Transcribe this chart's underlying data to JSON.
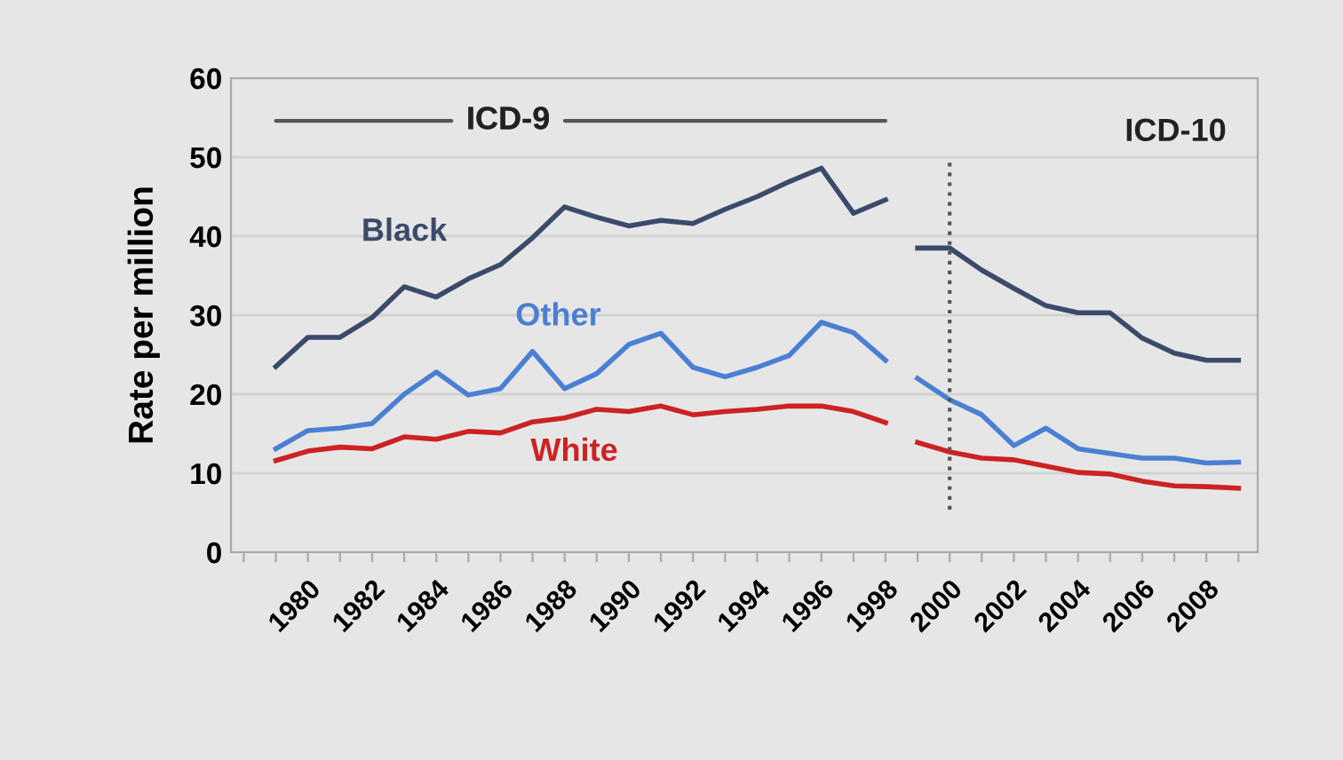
{
  "chart_data": {
    "type": "line",
    "ylabel": "Rate per million",
    "categories": [
      null,
      null,
      "1980",
      null,
      "1982",
      null,
      "1984",
      null,
      "1986",
      null,
      "1988",
      null,
      "1990",
      null,
      "1992",
      null,
      "1994",
      null,
      "1996",
      null,
      "1998",
      null,
      "2000",
      null,
      "2002",
      null,
      "2004",
      null,
      "2006",
      null,
      "2008",
      null
    ],
    "ylim": [
      0,
      60
    ],
    "yticks": [
      0,
      10,
      20,
      30,
      40,
      50,
      60
    ],
    "grid": "y",
    "marker": "none",
    "line_style": "solid",
    "series": [
      {
        "name": "Black",
        "color": "#3b4a6b",
        "values": [
          null,
          23.5,
          27.2,
          27.2,
          29.7,
          33.6,
          32.3,
          34.6,
          36.4,
          39.8,
          43.7,
          42.4,
          41.3,
          42.0,
          41.6,
          43.4,
          45.0,
          46.9,
          48.6,
          42.9,
          44.6,
          null,
          null,
          null,
          null,
          null,
          null,
          null,
          null,
          null,
          null,
          null
        ]
      },
      {
        "color": "#3b4a6b",
        "values": [
          null,
          null,
          null,
          null,
          null,
          null,
          null,
          null,
          null,
          null,
          null,
          null,
          null,
          null,
          null,
          null,
          null,
          null,
          null,
          null,
          null,
          38.5,
          38.5,
          35.7,
          33.4,
          31.2,
          30.3,
          30.3,
          27.1,
          25.2,
          24.3,
          24.3
        ]
      },
      {
        "name": "Other",
        "color": "#4a7fd4",
        "values": [
          null,
          13.1,
          15.4,
          15.7,
          16.3,
          20.0,
          22.8,
          19.9,
          20.7,
          25.4,
          20.7,
          22.6,
          26.3,
          27.7,
          23.4,
          22.2,
          23.4,
          24.9,
          29.1,
          27.8,
          24.3,
          null,
          null,
          null,
          null,
          null,
          null,
          null,
          null,
          null,
          null,
          null
        ]
      },
      {
        "color": "#4a7fd4",
        "values": [
          null,
          null,
          null,
          null,
          null,
          null,
          null,
          null,
          null,
          null,
          null,
          null,
          null,
          null,
          null,
          null,
          null,
          null,
          null,
          null,
          null,
          22.0,
          19.3,
          17.4,
          13.5,
          15.7,
          13.1,
          12.5,
          11.9,
          11.9,
          11.3,
          11.4
        ]
      },
      {
        "name": "White",
        "color": "#cc2222",
        "values": [
          null,
          11.6,
          12.8,
          13.3,
          13.1,
          14.6,
          14.3,
          15.3,
          15.1,
          16.5,
          17.0,
          18.1,
          17.8,
          18.5,
          17.4,
          17.8,
          18.1,
          18.5,
          18.5,
          17.8,
          16.4,
          null,
          null,
          null,
          null,
          null,
          null,
          null,
          null,
          null,
          null,
          null
        ]
      },
      {
        "color": "#cc2222",
        "values": [
          null,
          null,
          null,
          null,
          null,
          null,
          null,
          null,
          null,
          null,
          null,
          null,
          null,
          null,
          null,
          null,
          null,
          null,
          null,
          null,
          null,
          13.9,
          12.7,
          11.9,
          11.7,
          10.9,
          10.1,
          9.9,
          9.0,
          8.4,
          8.3,
          8.1
        ]
      }
    ],
    "ref_lines": [
      {
        "axis": "x",
        "value": "2000",
        "color": "#555555",
        "line_style": "dotted"
      }
    ],
    "annotations": [
      "ICD-9",
      "ICD-10"
    ]
  }
}
